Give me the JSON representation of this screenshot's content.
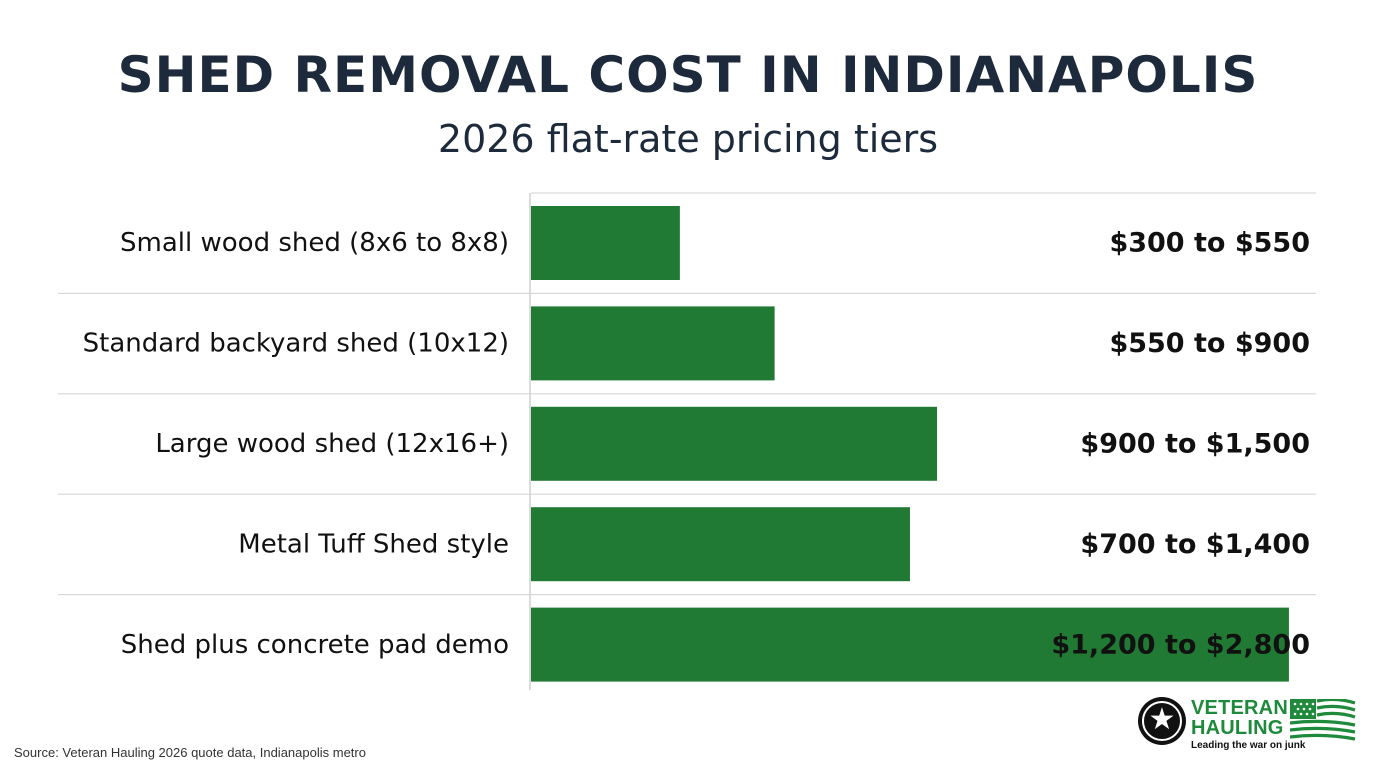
{
  "chart_data": {
    "type": "bar",
    "orientation": "horizontal",
    "title": "SHED REMOVAL COST IN INDIANAPOLIS",
    "subtitle": "2026 flat-rate pricing tiers",
    "categories": [
      "Small wood shed (8x6 to 8x8)",
      "Standard backyard shed (10x12)",
      "Large wood shed (12x16+)",
      "Metal Tuff Shed style",
      "Shed plus concrete pad demo"
    ],
    "value_labels": [
      "$300 to $550",
      "$550 to $900",
      "$900 to $1,500",
      "$700 to $1,400",
      "$1,200 to $2,800"
    ],
    "values": [
      550,
      900,
      1500,
      1400,
      2800
    ],
    "xlim": [
      0,
      2900
    ],
    "grid": true,
    "legend": "none",
    "colors": {
      "bar": "#217a33",
      "grid": "#d9d9d9",
      "axis": "#cfcfcf",
      "text": "#111111",
      "title": "#1c2a3b"
    }
  },
  "source": "Source: Veteran Hauling 2026 quote data, Indianapolis metro",
  "logo": {
    "name_line1": "VETERAN",
    "name_line2": "HAULING",
    "tagline": "Leading the war on junk",
    "emblem_icon": "star-icon",
    "flag_icon": "flag-icon",
    "colors": {
      "green": "#1f8a3b",
      "dark": "#111111"
    }
  }
}
